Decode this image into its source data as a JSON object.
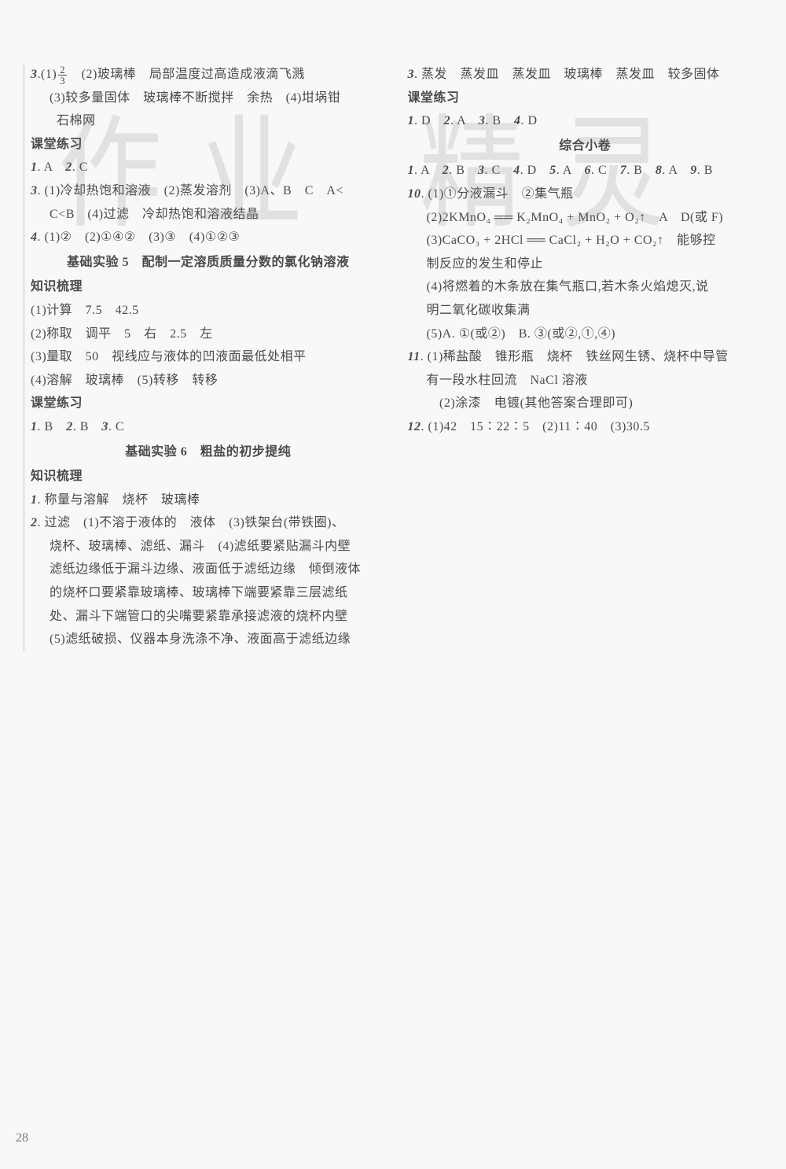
{
  "watermarks": {
    "w1": "作",
    "w2": "业",
    "w3": "精",
    "w4": "灵"
  },
  "pageNumber": "28",
  "left": {
    "l1a": "3",
    "l1b": ".(1)",
    "l1c": "　(2)玻璃棒　局部温度过高造成液滴飞溅",
    "frac_num": "2",
    "frac_den": "3",
    "l2": "(3)较多量固体　玻璃棒不断搅拌　余热　(4)坩埚钳",
    "l3": "　　石棉网",
    "h1": "课堂练习",
    "l4a": "1",
    "l4b": ". A　",
    "l4c": "2",
    "l4d": ". C",
    "l5a": "3",
    "l5b": ". (1)冷却热饱和溶液　(2)蒸发溶剂　(3)A、B　C　A<",
    "l6": "C<B　(4)过滤　冷却热饱和溶液结晶",
    "l7a": "4",
    "l7b": ". (1)②　(2)①④②　(3)③　(4)①②③",
    "sec5": "基础实验 5　配制一定溶质质量分数的氯化钠溶液",
    "h2": "知识梳理",
    "l8": "(1)计算　7.5　42.5",
    "l9": "(2)称取　调平　5　右　2.5　左",
    "l10": "(3)量取　50　视线应与液体的凹液面最低处相平",
    "l11": "(4)溶解　玻璃棒　(5)转移　转移",
    "h3": "课堂练习",
    "l12a": "1",
    "l12b": ". B　",
    "l12c": "2",
    "l12d": ". B　",
    "l12e": "3",
    "l12f": ". C",
    "sec6": "基础实验 6　粗盐的初步提纯",
    "h4": "知识梳理",
    "l13a": "1",
    "l13b": ". 称量与溶解　烧杯　玻璃棒",
    "l14a": "2",
    "l14b": ". 过滤　(1)不溶于液体的　液体　(3)铁架台(带铁圈)、",
    "l15": "烧杯、玻璃棒、滤纸、漏斗　(4)滤纸要紧贴漏斗内壁",
    "l16": "滤纸边缘低于漏斗边缘、液面低于滤纸边缘　倾倒液体",
    "l17": "的烧杯口要紧靠玻璃棒、玻璃棒下端要紧靠三层滤纸",
    "l18": "处、漏斗下端管口的尖嘴要紧靠承接滤液的烧杯内壁",
    "l19": "(5)滤纸破损、仪器本身洗涤不净、液面高于滤纸边缘"
  },
  "right": {
    "r1a": "3",
    "r1b": ". 蒸发　蒸发皿　蒸发皿　玻璃棒　蒸发皿　较多固体",
    "h5": "课堂练习",
    "r2a": "1",
    "r2b": ". D　",
    "r2c": "2",
    "r2d": ". A　",
    "r2e": "3",
    "r2f": ". B　",
    "r2g": "4",
    "r2h": ". D",
    "sec7": "综合小卷",
    "r3a": "1",
    "r3b": ". A　",
    "r3c": "2",
    "r3d": ". B　",
    "r3e": "3",
    "r3f": ". C　",
    "r3g": "4",
    "r3h": ". D　",
    "r3i": "5",
    "r3j": ". A　",
    "r3k": "6",
    "r3l": ". C　",
    "r3m": "7",
    "r3n": ". B　",
    "r3o": "8",
    "r3p": ". A　",
    "r3q": "9",
    "r3r": ". B",
    "r4a": "10",
    "r4b": ". (1)①分液漏斗　②集气瓶",
    "r5": "(2)2KMnO₄ ══ K₂MnO₄ + MnO₂ + O₂↑　A　D(或 F)",
    "r5tri": "△",
    "r6": "(3)CaCO₃ + 2HCl ══ CaCl₂ + H₂O + CO₂↑　能够控",
    "r7": "制反应的发生和停止",
    "r8": "(4)将燃着的木条放在集气瓶口,若木条火焰熄灭,说",
    "r9": "明二氧化碳收集满",
    "r10": "(5)A. ①(或②)　B. ③(或②,①,④)",
    "r11a": "11",
    "r11b": ". (1)稀盐酸　锥形瓶　烧杯　铁丝网生锈、烧杯中导管",
    "r12": "有一段水柱回流　NaCl 溶液",
    "r13": "　(2)涂漆　电镀(其他答案合理即可)",
    "r14a": "12",
    "r14b": ". (1)42　15∶22∶5　(2)11∶40　(3)30.5"
  }
}
